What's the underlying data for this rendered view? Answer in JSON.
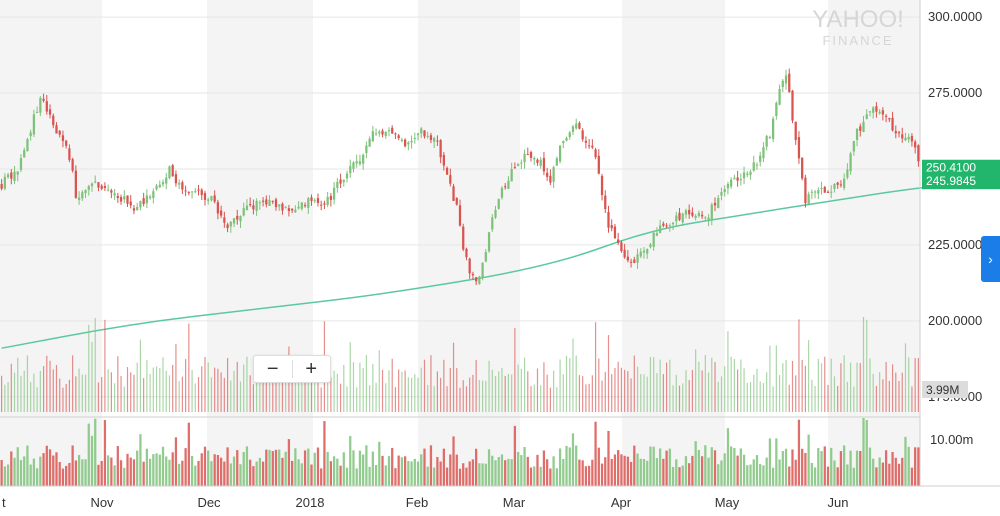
{
  "watermark": {
    "line1": "YAHOO!",
    "line2": "FINANCE"
  },
  "zoom": {
    "minus": "−",
    "plus": "+"
  },
  "nav": {
    "right_arrow": "›"
  },
  "colors": {
    "up": "#7ec27a",
    "down": "#d9534f",
    "ma": "#5cc8a0",
    "band": "#f4f4f4",
    "tag_bg": "#21b66b",
    "vol_tag_bg": "#dcdcdc",
    "nav": "#1b7ee8"
  },
  "chart_data": {
    "type": "candlestick",
    "y_ticks": [
      "300.0000",
      "275.0000",
      "250.0000",
      "225.0000",
      "200.0000",
      "175.0000"
    ],
    "ylim": [
      170,
      303
    ],
    "x_labels": [
      "t",
      "Nov",
      "Dec",
      "2018",
      "Feb",
      "Mar",
      "Apr",
      "May",
      "Jun"
    ],
    "last_price_tag": "250.4100",
    "ma_value_tag": "245.9845",
    "volume_tag": "3.99M",
    "volume_axis_tick": "10.00m",
    "ma_curve": [
      {
        "t": 0,
        "v": 191
      },
      {
        "t": 40,
        "v": 199
      },
      {
        "t": 80,
        "v": 204
      },
      {
        "t": 120,
        "v": 209
      },
      {
        "t": 170,
        "v": 218
      },
      {
        "t": 201,
        "v": 230
      },
      {
        "t": 230,
        "v": 235
      },
      {
        "t": 260,
        "v": 240
      },
      {
        "t": 285,
        "v": 244
      },
      {
        "t": 305,
        "v": 246
      }
    ],
    "close_path": [
      [
        0,
        245
      ],
      [
        5,
        250
      ],
      [
        8,
        260
      ],
      [
        12,
        273
      ],
      [
        17,
        263
      ],
      [
        19,
        260
      ],
      [
        22,
        250
      ],
      [
        23,
        240
      ],
      [
        28,
        246
      ],
      [
        32,
        244
      ],
      [
        38,
        240
      ],
      [
        42,
        237
      ],
      [
        47,
        242
      ],
      [
        52,
        250
      ],
      [
        56,
        243
      ],
      [
        60,
        242
      ],
      [
        65,
        240
      ],
      [
        70,
        232
      ],
      [
        75,
        236
      ],
      [
        80,
        239
      ],
      [
        85,
        238
      ],
      [
        90,
        236
      ],
      [
        95,
        240
      ],
      [
        100,
        238
      ],
      [
        105,
        246
      ],
      [
        110,
        252
      ],
      [
        115,
        262
      ],
      [
        120,
        263
      ],
      [
        125,
        258
      ],
      [
        130,
        262
      ],
      [
        135,
        258
      ],
      [
        138,
        247
      ],
      [
        141,
        237
      ],
      [
        143,
        225
      ],
      [
        145,
        217
      ],
      [
        147,
        212
      ],
      [
        149,
        218
      ],
      [
        151,
        230
      ],
      [
        154,
        240
      ],
      [
        158,
        250
      ],
      [
        163,
        256
      ],
      [
        167,
        252
      ],
      [
        170,
        245
      ],
      [
        173,
        258
      ],
      [
        177,
        265
      ],
      [
        181,
        260
      ],
      [
        184,
        254
      ],
      [
        186,
        240
      ],
      [
        188,
        232
      ],
      [
        190,
        228
      ],
      [
        192,
        222
      ],
      [
        195,
        218
      ],
      [
        198,
        222
      ],
      [
        202,
        228
      ],
      [
        206,
        232
      ],
      [
        210,
        234
      ],
      [
        214,
        236
      ],
      [
        218,
        234
      ],
      [
        222,
        240
      ],
      [
        226,
        246
      ],
      [
        230,
        248
      ],
      [
        234,
        252
      ],
      [
        238,
        262
      ],
      [
        241,
        276
      ],
      [
        243,
        282
      ],
      [
        245,
        266
      ],
      [
        247,
        255
      ],
      [
        249,
        240
      ],
      [
        252,
        242
      ],
      [
        256,
        243
      ],
      [
        259,
        244
      ],
      [
        262,
        250
      ],
      [
        265,
        262
      ],
      [
        268,
        268
      ],
      [
        272,
        270
      ],
      [
        275,
        265
      ],
      [
        278,
        262
      ],
      [
        282,
        260
      ],
      [
        284,
        252
      ]
    ]
  }
}
